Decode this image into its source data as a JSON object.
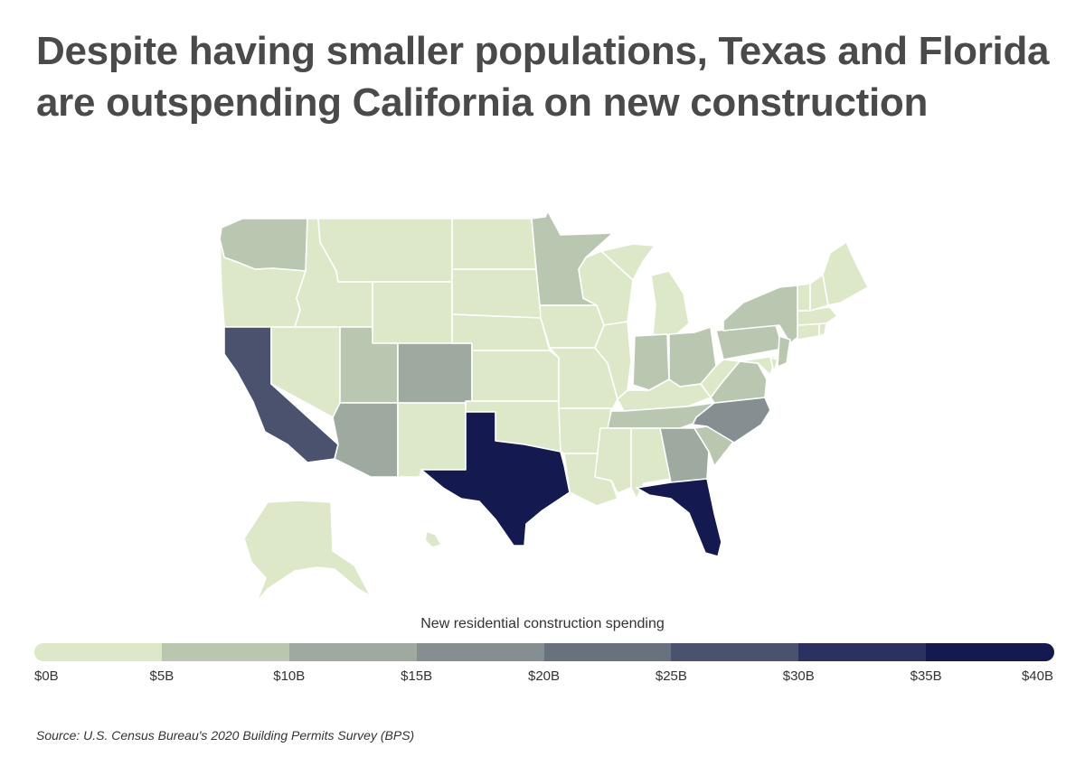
{
  "title": "Despite having smaller populations, Texas and Florida are outspending California on new construction",
  "legend": {
    "title": "New residential construction spending",
    "ticks": [
      "$0B",
      "$5B",
      "$10B",
      "$15B",
      "$20B",
      "$25B",
      "$30B",
      "$35B",
      "$40B"
    ],
    "colors": [
      "#dce8c8",
      "#bac7b0",
      "#9eaaa0",
      "#858f92",
      "#68727f",
      "#4a526d",
      "#2c3260",
      "#141a50"
    ]
  },
  "source": "Source:  U.S. Census Bureau's 2020 Building Permits Survey (BPS)",
  "map_data": {
    "metric": "New residential construction spending",
    "unit": "billion USD (bin index 0=$0–5B … 7=$35–40B)",
    "states": {
      "WA": 1,
      "OR": 0,
      "CA": 5,
      "NV": 0,
      "ID": 0,
      "MT": 0,
      "WY": 0,
      "UT": 1,
      "CO": 2,
      "AZ": 2,
      "NM": 0,
      "ND": 0,
      "SD": 0,
      "NE": 0,
      "KS": 0,
      "OK": 0,
      "TX": 7,
      "MN": 1,
      "IA": 0,
      "MO": 0,
      "AR": 0,
      "LA": 0,
      "WI": 0,
      "IL": 0,
      "MI": 0,
      "IN": 1,
      "OH": 1,
      "KY": 0,
      "TN": 1,
      "MS": 0,
      "AL": 0,
      "GA": 2,
      "FL": 7,
      "SC": 1,
      "NC": 3,
      "VA": 1,
      "WV": 0,
      "PA": 1,
      "NY": 1,
      "NJ": 1,
      "MD": 0,
      "DE": 0,
      "CT": 0,
      "RI": 0,
      "MA": 0,
      "VT": 0,
      "NH": 0,
      "ME": 0,
      "AK": 0,
      "HI": 0
    }
  }
}
